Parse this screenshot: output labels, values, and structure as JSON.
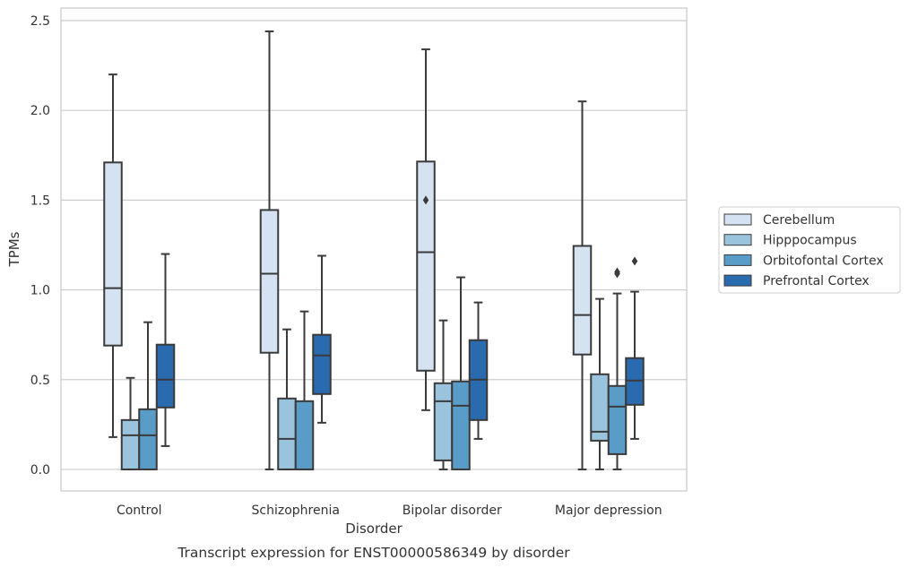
{
  "chart_data": {
    "type": "box",
    "title": "",
    "xlabel": "Disorder",
    "ylabel": "TPMs",
    "caption": "Transcript expression for ENST00000586349 by disorder",
    "categories": [
      "Control",
      "Schizophrenia",
      "Bipolar disorder",
      "Major depression"
    ],
    "ylim": [
      -0.12,
      2.57
    ],
    "yticks": [
      "0.0",
      "0.5",
      "1.0",
      "1.5",
      "2.0",
      "2.5"
    ],
    "grid": "horizontal",
    "legend_position": "right",
    "series": [
      {
        "name": "Cerebellum",
        "color": "#d4e2f1",
        "boxes": [
          {
            "whislo": 0.18,
            "q1": 0.69,
            "med": 1.01,
            "q3": 1.71,
            "whishi": 2.2,
            "fliers": []
          },
          {
            "whislo": 0.0,
            "q1": 0.65,
            "med": 1.09,
            "q3": 1.445,
            "whishi": 2.44,
            "fliers": []
          },
          {
            "whislo": 0.33,
            "q1": 0.55,
            "med": 1.21,
            "q3": 1.715,
            "whishi": 2.34,
            "fliers": [
              1.5
            ]
          },
          {
            "whislo": 0.0,
            "q1": 0.64,
            "med": 0.86,
            "q3": 1.245,
            "whishi": 2.05,
            "fliers": []
          }
        ]
      },
      {
        "name": "Hipppocampus",
        "color": "#9ac4de",
        "boxes": [
          {
            "whislo": 0.0,
            "q1": 0.0,
            "med": 0.19,
            "q3": 0.275,
            "whishi": 0.51,
            "fliers": []
          },
          {
            "whislo": 0.0,
            "q1": 0.0,
            "med": 0.17,
            "q3": 0.395,
            "whishi": 0.78,
            "fliers": []
          },
          {
            "whislo": 0.0,
            "q1": 0.05,
            "med": 0.38,
            "q3": 0.48,
            "whishi": 0.83,
            "fliers": []
          },
          {
            "whislo": 0.0,
            "q1": 0.16,
            "med": 0.21,
            "q3": 0.53,
            "whishi": 0.95,
            "fliers": []
          }
        ]
      },
      {
        "name": "Orbitofontal Cortex",
        "color": "#5a9cc8",
        "boxes": [
          {
            "whislo": 0.0,
            "q1": 0.0,
            "med": 0.19,
            "q3": 0.335,
            "whishi": 0.82,
            "fliers": []
          },
          {
            "whislo": 0.0,
            "q1": 0.0,
            "med": 0.0,
            "q3": 0.38,
            "whishi": 0.88,
            "fliers": []
          },
          {
            "whislo": 0.0,
            "q1": 0.0,
            "med": 0.355,
            "q3": 0.49,
            "whishi": 1.07,
            "fliers": []
          },
          {
            "whislo": 0.0,
            "q1": 0.085,
            "med": 0.35,
            "q3": 0.465,
            "whishi": 0.98,
            "fliers": [
              1.09,
              1.1
            ]
          }
        ]
      },
      {
        "name": "Prefrontal Cortex",
        "color": "#2a6aae",
        "boxes": [
          {
            "whislo": 0.13,
            "q1": 0.345,
            "med": 0.5,
            "q3": 0.695,
            "whishi": 1.2,
            "fliers": []
          },
          {
            "whislo": 0.26,
            "q1": 0.42,
            "med": 0.635,
            "q3": 0.75,
            "whishi": 1.19,
            "fliers": []
          },
          {
            "whislo": 0.17,
            "q1": 0.275,
            "med": 0.5,
            "q3": 0.72,
            "whishi": 0.93,
            "fliers": []
          },
          {
            "whislo": 0.17,
            "q1": 0.36,
            "med": 0.495,
            "q3": 0.62,
            "whishi": 0.99,
            "fliers": [
              1.16
            ]
          }
        ]
      }
    ]
  }
}
